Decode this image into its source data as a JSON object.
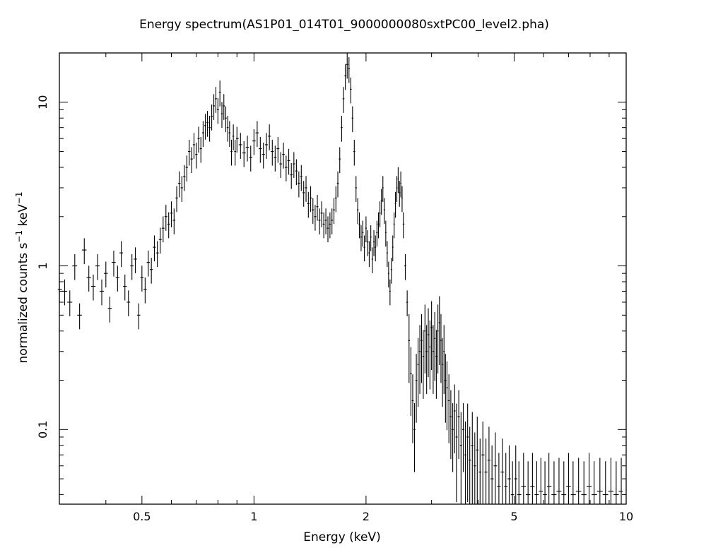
{
  "chart_data": {
    "type": "scatter",
    "title": "Energy spectrum(AS1P01_014T01_9000000080sxtPC00_level2.pha)",
    "xlabel": "Energy (keV)",
    "ylabel_main": "normalized counts s",
    "ylabel_sup1": "−1",
    "ylabel_mid": " keV",
    "ylabel_sup2": "−1",
    "xscale": "log",
    "yscale": "log",
    "xlim": [
      0.3,
      10
    ],
    "ylim": [
      0.035,
      20
    ],
    "xticks": [
      {
        "value": 0.5,
        "label": "0.5"
      },
      {
        "value": 1,
        "label": "1"
      },
      {
        "value": 2,
        "label": "2"
      },
      {
        "value": 5,
        "label": "5"
      },
      {
        "value": 10,
        "label": "10"
      }
    ],
    "yticks": [
      {
        "value": 0.1,
        "label": "0.1"
      },
      {
        "value": 1,
        "label": "1"
      },
      {
        "value": 10,
        "label": "10"
      }
    ],
    "grid": false,
    "style": "error-bar crosses",
    "series": [
      {
        "points": [
          [
            0.3,
            0.72
          ],
          [
            0.31,
            0.7
          ],
          [
            0.32,
            0.6
          ],
          [
            0.33,
            1.0
          ],
          [
            0.34,
            0.5
          ],
          [
            0.35,
            1.25
          ],
          [
            0.36,
            0.85
          ],
          [
            0.37,
            0.75
          ],
          [
            0.38,
            1.0
          ],
          [
            0.39,
            0.7
          ],
          [
            0.4,
            0.9
          ],
          [
            0.41,
            0.55
          ],
          [
            0.42,
            1.05
          ],
          [
            0.43,
            0.85
          ],
          [
            0.44,
            1.2
          ],
          [
            0.45,
            0.75
          ],
          [
            0.46,
            0.6
          ],
          [
            0.47,
            1.0
          ],
          [
            0.48,
            1.1
          ],
          [
            0.49,
            0.5
          ],
          [
            0.5,
            0.85
          ],
          [
            0.51,
            0.72
          ],
          [
            0.52,
            1.05
          ],
          [
            0.53,
            0.95
          ],
          [
            0.54,
            1.3
          ],
          [
            0.55,
            1.2
          ],
          [
            0.56,
            1.45
          ],
          [
            0.57,
            1.7
          ],
          [
            0.58,
            2.0
          ],
          [
            0.59,
            1.8
          ],
          [
            0.6,
            2.1
          ],
          [
            0.61,
            1.9
          ],
          [
            0.62,
            2.6
          ],
          [
            0.63,
            3.2
          ],
          [
            0.64,
            3.0
          ],
          [
            0.65,
            3.5
          ],
          [
            0.66,
            4.0
          ],
          [
            0.67,
            5.0
          ],
          [
            0.68,
            4.5
          ],
          [
            0.69,
            5.5
          ],
          [
            0.7,
            4.8
          ],
          [
            0.71,
            6.0
          ],
          [
            0.72,
            5.2
          ],
          [
            0.73,
            6.5
          ],
          [
            0.74,
            7.2
          ],
          [
            0.75,
            7.5
          ],
          [
            0.76,
            7.0
          ],
          [
            0.77,
            8.2
          ],
          [
            0.78,
            9.5
          ],
          [
            0.79,
            10.5
          ],
          [
            0.8,
            9.0
          ],
          [
            0.81,
            11.5
          ],
          [
            0.82,
            8.5
          ],
          [
            0.83,
            9.5
          ],
          [
            0.84,
            8.0
          ],
          [
            0.85,
            7.0
          ],
          [
            0.86,
            6.5
          ],
          [
            0.87,
            5.0
          ],
          [
            0.88,
            6.2
          ],
          [
            0.89,
            5.0
          ],
          [
            0.9,
            6.0
          ],
          [
            0.92,
            5.5
          ],
          [
            0.94,
            4.9
          ],
          [
            0.96,
            5.3
          ],
          [
            0.98,
            4.6
          ],
          [
            1.0,
            5.8
          ],
          [
            1.02,
            6.5
          ],
          [
            1.04,
            5.2
          ],
          [
            1.06,
            4.8
          ],
          [
            1.08,
            5.5
          ],
          [
            1.1,
            6.2
          ],
          [
            1.12,
            5.0
          ],
          [
            1.14,
            4.6
          ],
          [
            1.16,
            5.2
          ],
          [
            1.18,
            4.2
          ],
          [
            1.2,
            4.8
          ],
          [
            1.22,
            4.0
          ],
          [
            1.24,
            4.4
          ],
          [
            1.26,
            3.6
          ],
          [
            1.28,
            4.2
          ],
          [
            1.3,
            3.8
          ],
          [
            1.32,
            3.2
          ],
          [
            1.34,
            3.5
          ],
          [
            1.36,
            2.8
          ],
          [
            1.38,
            3.0
          ],
          [
            1.4,
            2.4
          ],
          [
            1.42,
            2.6
          ],
          [
            1.44,
            2.2
          ],
          [
            1.46,
            2.0
          ],
          [
            1.48,
            2.3
          ],
          [
            1.5,
            1.9
          ],
          [
            1.52,
            2.1
          ],
          [
            1.54,
            1.8
          ],
          [
            1.56,
            1.9
          ],
          [
            1.58,
            1.7
          ],
          [
            1.6,
            1.8
          ],
          [
            1.62,
            1.9
          ],
          [
            1.64,
            2.2
          ],
          [
            1.66,
            2.6
          ],
          [
            1.68,
            3.2
          ],
          [
            1.7,
            4.5
          ],
          [
            1.72,
            7.0
          ],
          [
            1.74,
            10.5
          ],
          [
            1.76,
            14.5
          ],
          [
            1.78,
            17.0
          ],
          [
            1.8,
            16.0
          ],
          [
            1.82,
            12.0
          ],
          [
            1.84,
            8.0
          ],
          [
            1.86,
            5.0
          ],
          [
            1.88,
            3.0
          ],
          [
            1.9,
            2.2
          ],
          [
            1.92,
            1.8
          ],
          [
            1.94,
            1.5
          ],
          [
            1.96,
            1.6
          ],
          [
            1.98,
            1.3
          ],
          [
            2.0,
            1.7
          ],
          [
            2.02,
            1.4
          ],
          [
            2.04,
            1.2
          ],
          [
            2.06,
            1.5
          ],
          [
            2.08,
            1.1
          ],
          [
            2.1,
            1.4
          ],
          [
            2.12,
            1.3
          ],
          [
            2.14,
            1.6
          ],
          [
            2.16,
            1.8
          ],
          [
            2.18,
            2.1
          ],
          [
            2.2,
            2.5
          ],
          [
            2.22,
            3.0
          ],
          [
            2.24,
            2.2
          ],
          [
            2.26,
            1.6
          ],
          [
            2.28,
            1.2
          ],
          [
            2.3,
            0.9
          ],
          [
            2.32,
            0.7
          ],
          [
            2.34,
            0.95
          ],
          [
            2.36,
            1.3
          ],
          [
            2.38,
            1.8
          ],
          [
            2.4,
            2.4
          ],
          [
            2.42,
            3.0
          ],
          [
            2.44,
            3.4
          ],
          [
            2.46,
            2.8
          ],
          [
            2.48,
            3.2
          ],
          [
            2.5,
            2.6
          ],
          [
            2.52,
            1.8
          ],
          [
            2.55,
            1.0
          ],
          [
            2.58,
            0.6
          ],
          [
            2.61,
            0.35
          ],
          [
            2.64,
            0.22
          ],
          [
            2.67,
            0.15
          ],
          [
            2.7,
            0.1
          ],
          [
            2.73,
            0.2
          ],
          [
            2.76,
            0.25
          ],
          [
            2.79,
            0.3
          ],
          [
            2.82,
            0.35
          ],
          [
            2.85,
            0.28
          ],
          [
            2.88,
            0.4
          ],
          [
            2.91,
            0.3
          ],
          [
            2.94,
            0.38
          ],
          [
            2.97,
            0.32
          ],
          [
            3.0,
            0.42
          ],
          [
            3.03,
            0.3
          ],
          [
            3.06,
            0.36
          ],
          [
            3.09,
            0.28
          ],
          [
            3.12,
            0.4
          ],
          [
            3.15,
            0.45
          ],
          [
            3.18,
            0.35
          ],
          [
            3.21,
            0.25
          ],
          [
            3.24,
            0.3
          ],
          [
            3.27,
            0.2
          ],
          [
            3.3,
            0.18
          ],
          [
            3.34,
            0.15
          ],
          [
            3.38,
            0.12
          ],
          [
            3.42,
            0.1
          ],
          [
            3.46,
            0.13
          ],
          [
            3.5,
            0.09
          ],
          [
            3.55,
            0.12
          ],
          [
            3.6,
            0.08
          ],
          [
            3.65,
            0.1
          ],
          [
            3.7,
            0.07
          ],
          [
            3.75,
            0.09
          ],
          [
            3.8,
            0.065
          ],
          [
            3.86,
            0.08
          ],
          [
            3.92,
            0.06
          ],
          [
            3.98,
            0.075
          ],
          [
            4.05,
            0.055
          ],
          [
            4.12,
            0.07
          ],
          [
            4.2,
            0.055
          ],
          [
            4.28,
            0.065
          ],
          [
            4.36,
            0.05
          ],
          [
            4.45,
            0.06
          ],
          [
            4.55,
            0.045
          ],
          [
            4.65,
            0.055
          ],
          [
            4.75,
            0.045
          ],
          [
            4.85,
            0.05
          ],
          [
            4.95,
            0.04
          ],
          [
            5.05,
            0.05
          ],
          [
            5.15,
            0.04
          ],
          [
            5.3,
            0.045
          ],
          [
            5.45,
            0.04
          ],
          [
            5.6,
            0.045
          ],
          [
            5.75,
            0.04
          ],
          [
            5.9,
            0.042
          ],
          [
            6.05,
            0.04
          ],
          [
            6.2,
            0.045
          ],
          [
            6.4,
            0.04
          ],
          [
            6.6,
            0.042
          ],
          [
            6.8,
            0.04
          ],
          [
            7.0,
            0.045
          ],
          [
            7.2,
            0.04
          ],
          [
            7.45,
            0.042
          ],
          [
            7.7,
            0.04
          ],
          [
            7.95,
            0.045
          ],
          [
            8.2,
            0.04
          ],
          [
            8.5,
            0.042
          ],
          [
            8.8,
            0.04
          ],
          [
            9.1,
            0.042
          ],
          [
            9.4,
            0.04
          ],
          [
            9.7,
            0.042
          ]
        ]
      }
    ]
  }
}
